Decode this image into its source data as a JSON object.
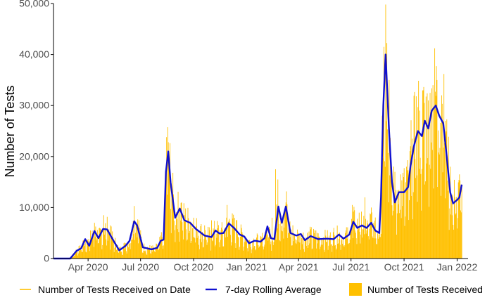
{
  "chart_data": {
    "type": "bar",
    "ylabel": "Number of Tests",
    "xlabel": "",
    "ylim": [
      0,
      50000
    ],
    "y_ticks": [
      0,
      10000,
      20000,
      30000,
      40000,
      50000
    ],
    "y_tick_labels": [
      "0",
      "10,000",
      "20,000",
      "30,000",
      "40,000",
      "50,000"
    ],
    "x_range": [
      "2020-02-01",
      "2022-01-20"
    ],
    "x_ticks": [
      "2020-04-01",
      "2020-07-01",
      "2020-10-01",
      "2021-01-01",
      "2021-04-01",
      "2021-07-01",
      "2021-10-01",
      "2022-01-01"
    ],
    "x_tick_labels": [
      "Apr 2020",
      "Jul 2020",
      "Oct 2020",
      "Jan 2021",
      "Apr 2021",
      "Jul 2021",
      "Oct 2021",
      "Jan 2022"
    ],
    "grid": false,
    "legend_position": "bottom",
    "colors": {
      "bars": "#FFC000",
      "line": "#1010D0",
      "axis": "#000000",
      "text": "#4D4D4D"
    },
    "legend": [
      {
        "label": "Number of Tests Received on Date",
        "key": "yellow-line"
      },
      {
        "label": "7-day Rolling Average",
        "key": "blue-line"
      },
      {
        "label": "Number of Tests Received",
        "key": "yellow-box"
      }
    ],
    "series": [
      {
        "name": "7-day Rolling Average",
        "kind": "line",
        "points": [
          [
            "2020-02-01",
            0
          ],
          [
            "2020-03-01",
            0
          ],
          [
            "2020-03-12",
            1500
          ],
          [
            "2020-03-20",
            2000
          ],
          [
            "2020-03-27",
            3800
          ],
          [
            "2020-04-03",
            2500
          ],
          [
            "2020-04-12",
            5400
          ],
          [
            "2020-04-19",
            4000
          ],
          [
            "2020-04-27",
            5800
          ],
          [
            "2020-05-04",
            5700
          ],
          [
            "2020-05-15",
            3500
          ],
          [
            "2020-05-25",
            1600
          ],
          [
            "2020-06-05",
            2500
          ],
          [
            "2020-06-12",
            3500
          ],
          [
            "2020-06-20",
            7300
          ],
          [
            "2020-06-25",
            6500
          ],
          [
            "2020-07-05",
            2200
          ],
          [
            "2020-07-20",
            1800
          ],
          [
            "2020-07-30",
            2100
          ],
          [
            "2020-08-05",
            3500
          ],
          [
            "2020-08-10",
            3700
          ],
          [
            "2020-08-14",
            17000
          ],
          [
            "2020-08-18",
            21000
          ],
          [
            "2020-08-22",
            15000
          ],
          [
            "2020-08-30",
            8000
          ],
          [
            "2020-09-07",
            9800
          ],
          [
            "2020-09-15",
            7500
          ],
          [
            "2020-09-25",
            7000
          ],
          [
            "2020-10-05",
            5800
          ],
          [
            "2020-10-20",
            4500
          ],
          [
            "2020-11-01",
            4200
          ],
          [
            "2020-11-08",
            5500
          ],
          [
            "2020-11-15",
            4900
          ],
          [
            "2020-11-22",
            5000
          ],
          [
            "2020-12-01",
            6900
          ],
          [
            "2020-12-10",
            6000
          ],
          [
            "2020-12-20",
            4700
          ],
          [
            "2020-12-28",
            4300
          ],
          [
            "2021-01-05",
            3000
          ],
          [
            "2021-01-15",
            3500
          ],
          [
            "2021-01-25",
            3300
          ],
          [
            "2021-02-01",
            4000
          ],
          [
            "2021-02-06",
            6300
          ],
          [
            "2021-02-12",
            4000
          ],
          [
            "2021-02-18",
            3800
          ],
          [
            "2021-02-25",
            10200
          ],
          [
            "2021-03-03",
            7000
          ],
          [
            "2021-03-10",
            10200
          ],
          [
            "2021-03-18",
            5000
          ],
          [
            "2021-03-28",
            4500
          ],
          [
            "2021-04-05",
            4800
          ],
          [
            "2021-04-12",
            3600
          ],
          [
            "2021-04-22",
            4400
          ],
          [
            "2021-05-05",
            3800
          ],
          [
            "2021-05-20",
            3900
          ],
          [
            "2021-06-01",
            3800
          ],
          [
            "2021-06-10",
            4700
          ],
          [
            "2021-06-18",
            3900
          ],
          [
            "2021-06-28",
            4700
          ],
          [
            "2021-07-05",
            7200
          ],
          [
            "2021-07-12",
            6000
          ],
          [
            "2021-07-20",
            6500
          ],
          [
            "2021-07-28",
            6000
          ],
          [
            "2021-08-05",
            7000
          ],
          [
            "2021-08-12",
            5500
          ],
          [
            "2021-08-19",
            5000
          ],
          [
            "2021-08-22",
            12000
          ],
          [
            "2021-08-26",
            30000
          ],
          [
            "2021-08-30",
            40000
          ],
          [
            "2021-09-05",
            25000
          ],
          [
            "2021-09-10",
            15000
          ],
          [
            "2021-09-15",
            11000
          ],
          [
            "2021-09-22",
            13000
          ],
          [
            "2021-10-01",
            13000
          ],
          [
            "2021-10-08",
            14000
          ],
          [
            "2021-10-12",
            18000
          ],
          [
            "2021-10-18",
            22000
          ],
          [
            "2021-10-25",
            25000
          ],
          [
            "2021-11-01",
            24000
          ],
          [
            "2021-11-06",
            27000
          ],
          [
            "2021-11-12",
            25500
          ],
          [
            "2021-11-18",
            29000
          ],
          [
            "2021-11-25",
            30000
          ],
          [
            "2021-12-01",
            28000
          ],
          [
            "2021-12-08",
            26500
          ],
          [
            "2021-12-14",
            20000
          ],
          [
            "2021-12-20",
            13000
          ],
          [
            "2021-12-25",
            10800
          ],
          [
            "2022-01-01",
            11500
          ],
          [
            "2022-01-05",
            12000
          ],
          [
            "2022-01-09",
            14500
          ]
        ]
      },
      {
        "name": "Number of Tests Received on Date",
        "kind": "daily-bars",
        "peaks": [
          [
            "2020-03-15",
            1000
          ],
          [
            "2020-04-05",
            5500
          ],
          [
            "2020-04-12",
            7000
          ],
          [
            "2020-04-28",
            8500
          ],
          [
            "2020-05-10",
            6500
          ],
          [
            "2020-06-05",
            3000
          ],
          [
            "2020-06-20",
            10300
          ],
          [
            "2020-06-28",
            7500
          ],
          [
            "2020-07-20",
            2500
          ],
          [
            "2020-08-05",
            4500
          ],
          [
            "2020-08-15",
            23800
          ],
          [
            "2020-08-18",
            22800
          ],
          [
            "2020-09-10",
            11000
          ],
          [
            "2020-10-01",
            8000
          ],
          [
            "2020-10-20",
            6500
          ],
          [
            "2020-11-01",
            7500
          ],
          [
            "2020-11-28",
            10500
          ],
          [
            "2020-12-15",
            7500
          ],
          [
            "2021-01-05",
            3500
          ],
          [
            "2021-02-05",
            6000
          ],
          [
            "2021-02-14",
            8000
          ],
          [
            "2021-02-20",
            17500
          ],
          [
            "2021-02-24",
            15500
          ],
          [
            "2021-03-10",
            11000
          ],
          [
            "2021-04-01",
            5000
          ],
          [
            "2021-05-01",
            5500
          ],
          [
            "2021-06-01",
            6000
          ],
          [
            "2021-06-22",
            5500
          ],
          [
            "2021-07-03",
            10500
          ],
          [
            "2021-07-15",
            9000
          ],
          [
            "2021-07-25",
            12000
          ],
          [
            "2021-08-05",
            10000
          ],
          [
            "2021-08-20",
            8500
          ],
          [
            "2021-08-24",
            28000
          ],
          [
            "2021-08-27",
            41500
          ],
          [
            "2021-08-30",
            49800
          ],
          [
            "2021-09-05",
            35000
          ],
          [
            "2021-09-15",
            17000
          ],
          [
            "2021-09-25",
            16500
          ],
          [
            "2021-10-05",
            18000
          ],
          [
            "2021-10-15",
            23500
          ],
          [
            "2021-10-22",
            31800
          ],
          [
            "2021-10-28",
            29000
          ],
          [
            "2021-11-05",
            30500
          ],
          [
            "2021-11-12",
            31000
          ],
          [
            "2021-11-20",
            34000
          ],
          [
            "2021-11-27",
            35000
          ],
          [
            "2021-12-05",
            32000
          ],
          [
            "2021-12-12",
            27000
          ],
          [
            "2021-12-20",
            18000
          ],
          [
            "2021-12-28",
            12000
          ],
          [
            "2022-01-05",
            16500
          ],
          [
            "2022-01-09",
            14500
          ]
        ]
      }
    ]
  }
}
